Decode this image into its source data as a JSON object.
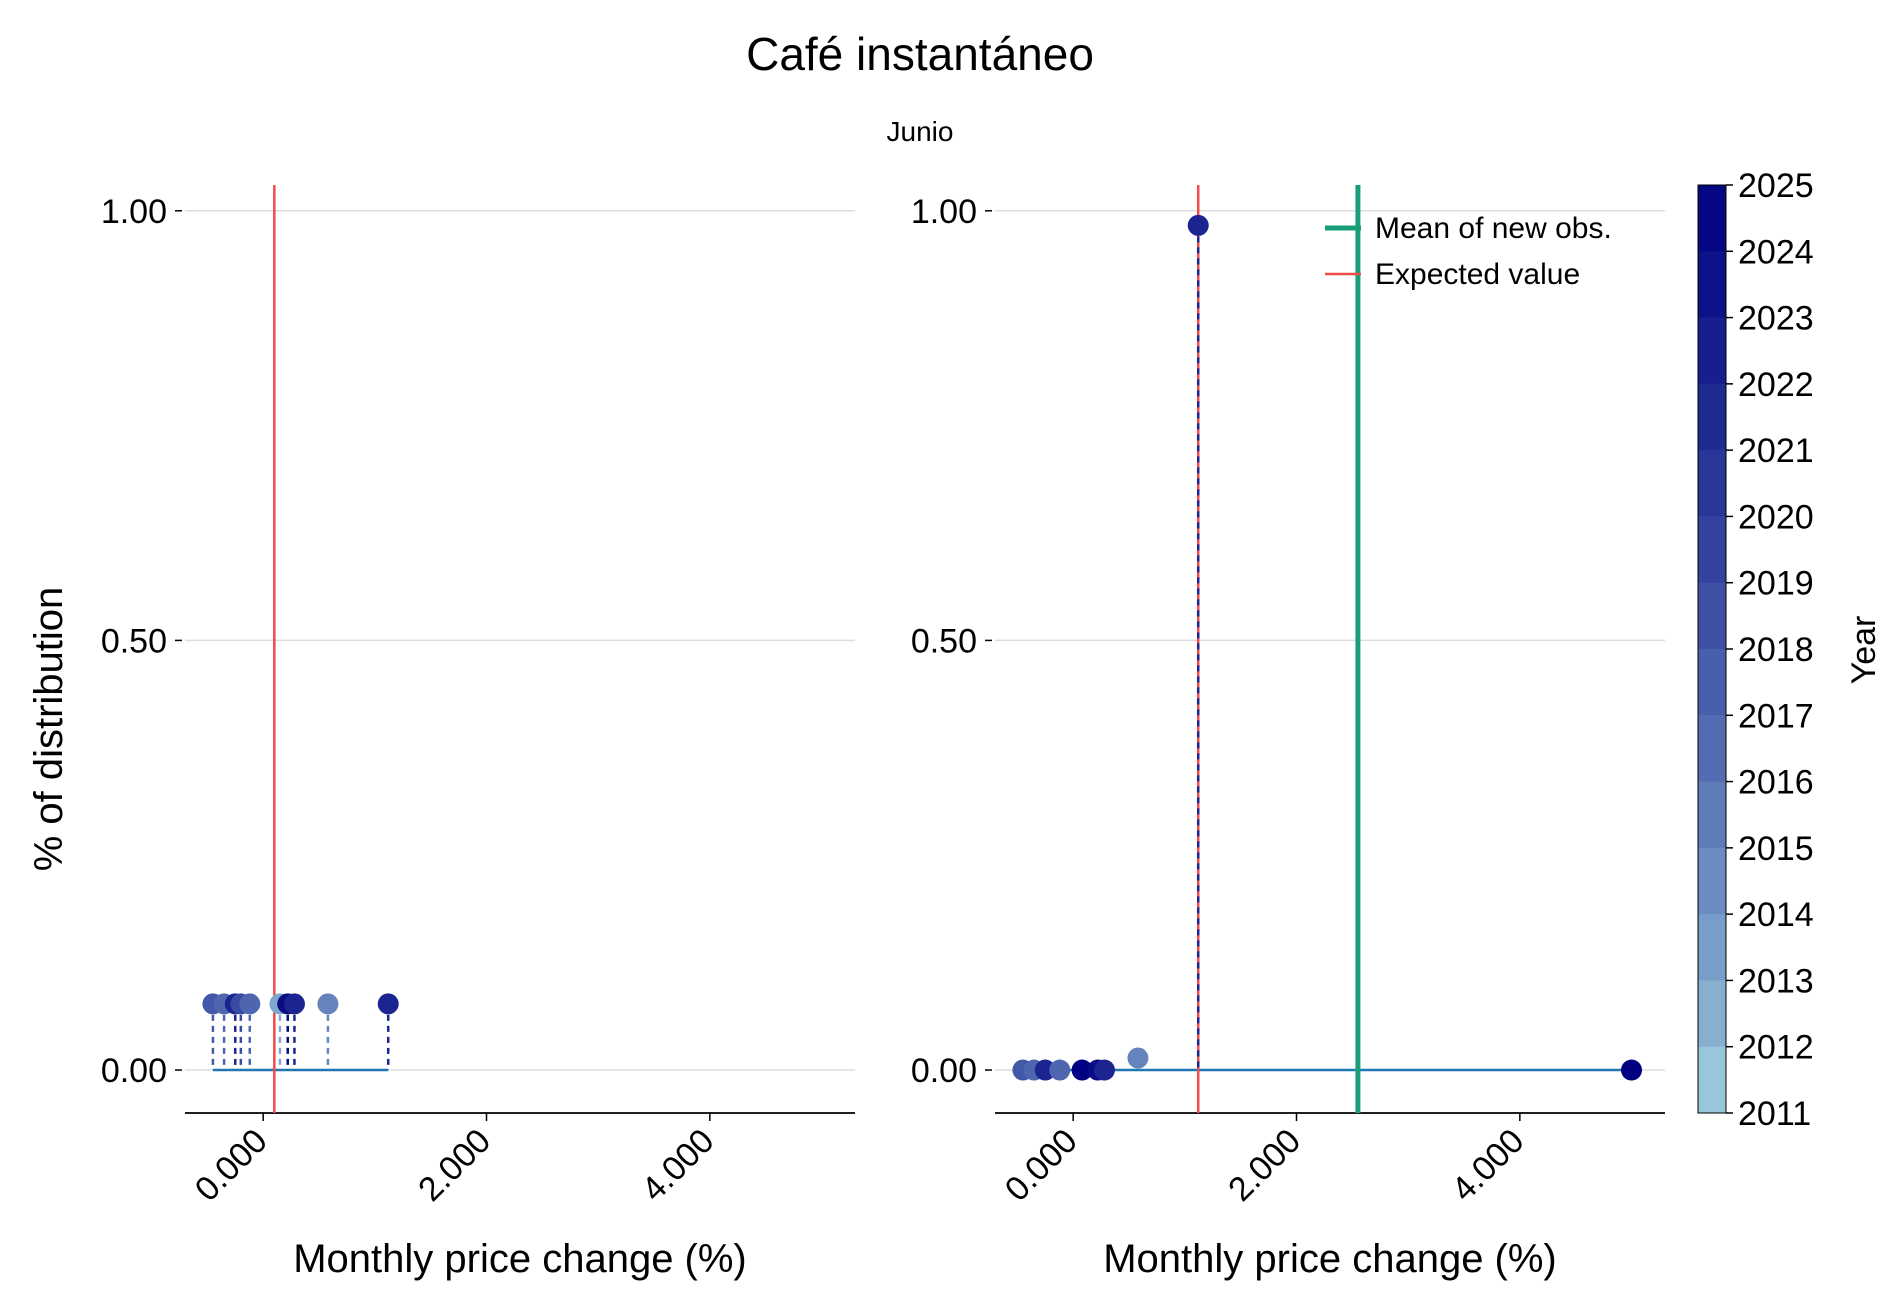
{
  "chart_data": {
    "title": "Café instantáneo",
    "subtitle": "Junio",
    "colorbar": {
      "label": "Year",
      "ticks": [
        "2025",
        "2024",
        "2023",
        "2022",
        "2021",
        "2020",
        "2019",
        "2018",
        "2017",
        "2016",
        "2015",
        "2014",
        "2013",
        "2012",
        "2011"
      ],
      "range": [
        2011,
        2025
      ],
      "color_low": "#a6d8e3",
      "color_high": "#000080"
    },
    "colors": {
      "expected_value": "#f04a4a",
      "mean_new_obs": "#1a9e7a",
      "baseline": "#1f77b4",
      "grid": "#dddddd"
    },
    "legend": {
      "position": "top-right",
      "items": [
        {
          "label": "Mean of new obs.",
          "color": "#1a9e7a"
        },
        {
          "label": "Expected value",
          "color": "#f04a4a"
        }
      ]
    },
    "panels": [
      {
        "type": "scatter",
        "xlabel": "Monthly price change (%)",
        "ylabel": "% of distribution",
        "xlim": [
          -0.7,
          5.3
        ],
        "ylim": [
          -0.05,
          1.03
        ],
        "xticks": [
          "0.000",
          "2.000",
          "4.000"
        ],
        "yticks": [
          "0.00",
          "0.50",
          "1.00"
        ],
        "expected_value": 0.1,
        "points": [
          {
            "x": -0.45,
            "y": 0.077,
            "year": 2018
          },
          {
            "x": -0.35,
            "y": 0.077,
            "year": 2017
          },
          {
            "x": -0.25,
            "y": 0.077,
            "year": 2022
          },
          {
            "x": -0.2,
            "y": 0.077,
            "year": 2019
          },
          {
            "x": -0.12,
            "y": 0.077,
            "year": 2017
          },
          {
            "x": 0.15,
            "y": 0.077,
            "year": 2013
          },
          {
            "x": 0.22,
            "y": 0.077,
            "year": 2024
          },
          {
            "x": 0.28,
            "y": 0.077,
            "year": 2022
          },
          {
            "x": 0.58,
            "y": 0.077,
            "year": 2015
          },
          {
            "x": 1.12,
            "y": 0.077,
            "year": 2022
          }
        ]
      },
      {
        "type": "scatter",
        "xlabel": "Monthly price change (%)",
        "ylabel": "",
        "xlim": [
          -0.7,
          5.3
        ],
        "ylim": [
          -0.05,
          1.03
        ],
        "xticks": [
          "0.000",
          "2.000",
          "4.000"
        ],
        "yticks": [
          "0.00",
          "0.50",
          "1.00"
        ],
        "expected_value": 1.12,
        "mean_new_obs": 2.55,
        "points": [
          {
            "x": 1.12,
            "y": 0.983,
            "year": 2022
          },
          {
            "x": 0.58,
            "y": 0.014,
            "year": 2015
          },
          {
            "x": -0.45,
            "y": 0.0,
            "year": 2018
          },
          {
            "x": -0.35,
            "y": 0.0,
            "year": 2017
          },
          {
            "x": -0.25,
            "y": 0.0,
            "year": 2022
          },
          {
            "x": -0.12,
            "y": 0.0,
            "year": 2017
          },
          {
            "x": 0.08,
            "y": 0.0,
            "year": 2025
          },
          {
            "x": 0.22,
            "y": 0.0,
            "year": 2024
          },
          {
            "x": 0.28,
            "y": 0.0,
            "year": 2022
          },
          {
            "x": 5.0,
            "y": 0.0,
            "year": 2025
          }
        ]
      }
    ]
  }
}
